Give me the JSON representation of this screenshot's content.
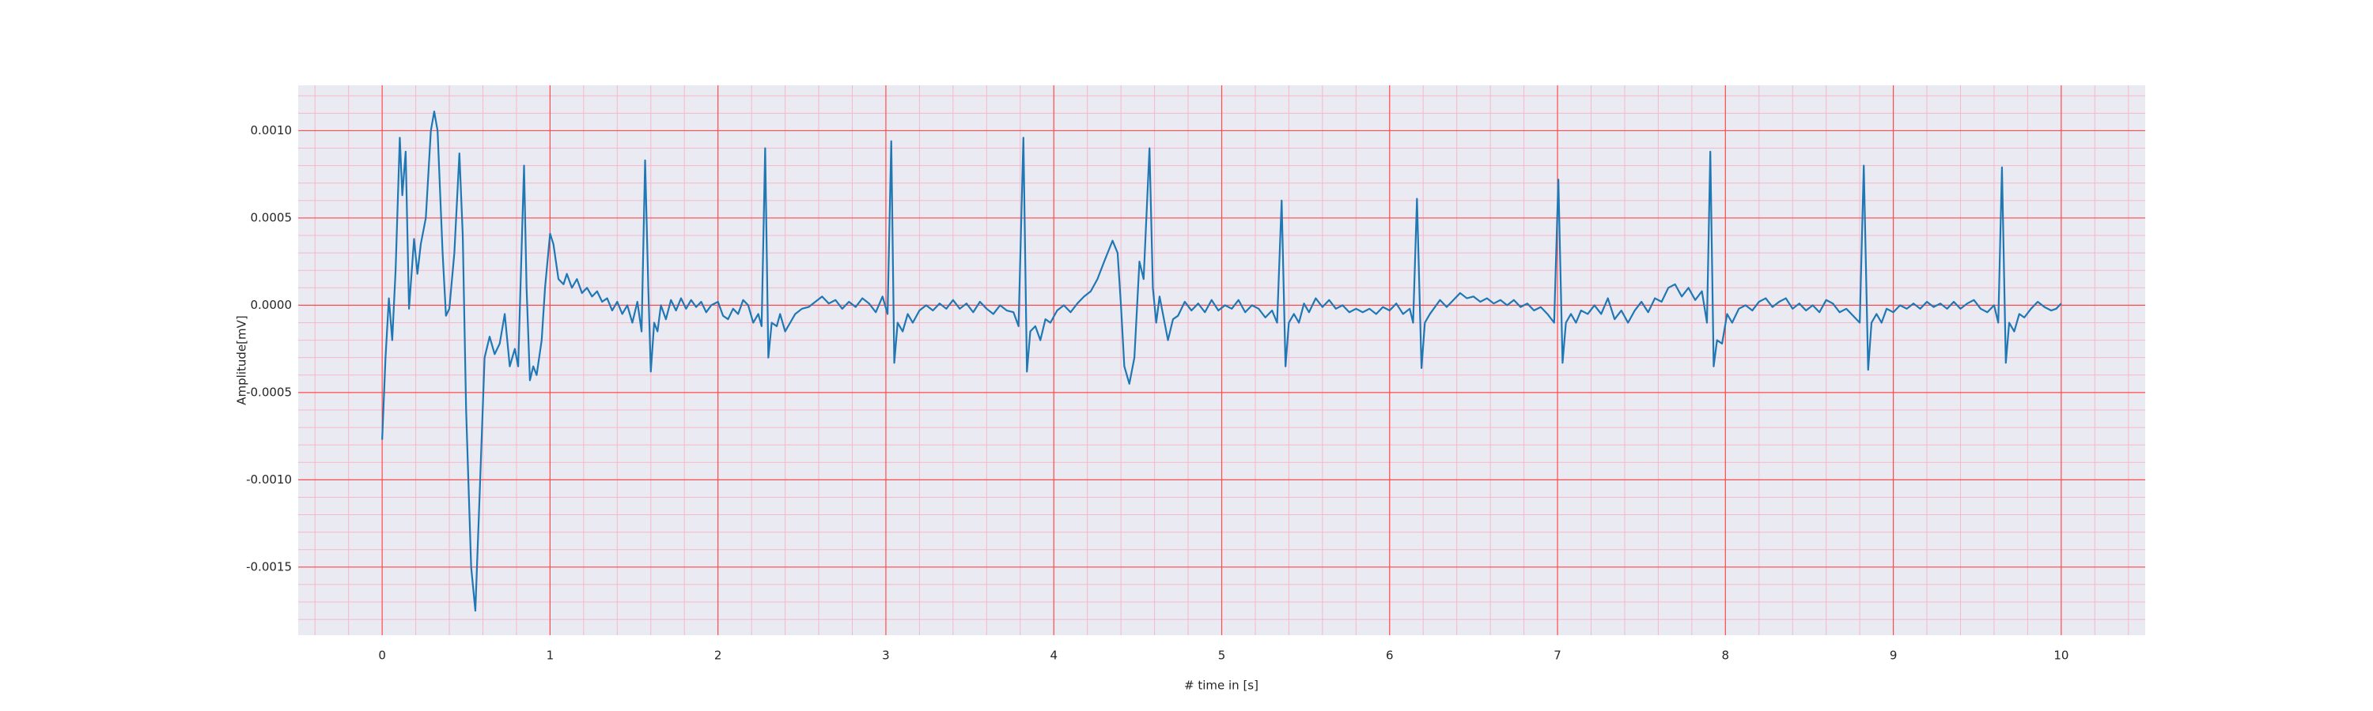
{
  "chart_data": {
    "type": "line",
    "xlabel": "# time in [s]",
    "ylabel": "Amplitude[mV]",
    "xlim": [
      -0.5,
      10.5
    ],
    "ylim": [
      -0.00189,
      0.00126
    ],
    "xticks": [
      0,
      1,
      2,
      3,
      4,
      5,
      6,
      7,
      8,
      9,
      10
    ],
    "yticks": [
      {
        "value": -0.0015,
        "label": "-0.0015"
      },
      {
        "value": -0.001,
        "label": "-0.0010"
      },
      {
        "value": -0.0005,
        "label": "-0.0005"
      },
      {
        "value": 0,
        "label": "0.0000"
      },
      {
        "value": 0.0005,
        "label": "0.0005"
      },
      {
        "value": 0.001,
        "label": "0.0010"
      }
    ],
    "grid": true,
    "grid_color": "#ff4d4d",
    "minor_grid_color": "#f5b8c8",
    "minor_xstep": 0.2,
    "minor_ystep": 0.0001,
    "background": "#eaeaf2",
    "series": [
      {
        "color": "#1f77b4",
        "x": [
          0,
          0.02,
          0.04,
          0.06,
          0.08,
          0.105,
          0.12,
          0.14,
          0.16,
          0.19,
          0.21,
          0.23,
          0.26,
          0.29,
          0.31,
          0.33,
          0.36,
          0.38,
          0.4,
          0.43,
          0.46,
          0.48,
          0.5,
          0.53,
          0.555,
          0.58,
          0.61,
          0.64,
          0.67,
          0.7,
          0.73,
          0.76,
          0.79,
          0.81,
          0.845,
          0.86,
          0.88,
          0.9,
          0.92,
          0.95,
          0.97,
          1.0,
          1.02,
          1.05,
          1.08,
          1.1,
          1.13,
          1.16,
          1.19,
          1.22,
          1.25,
          1.28,
          1.31,
          1.34,
          1.37,
          1.4,
          1.43,
          1.46,
          1.49,
          1.52,
          1.545,
          1.566,
          1.585,
          1.6,
          1.62,
          1.64,
          1.66,
          1.69,
          1.72,
          1.75,
          1.78,
          1.81,
          1.84,
          1.87,
          1.9,
          1.93,
          1.96,
          2.0,
          2.03,
          2.06,
          2.09,
          2.12,
          2.15,
          2.18,
          2.21,
          2.24,
          2.26,
          2.281,
          2.3,
          2.32,
          2.35,
          2.37,
          2.4,
          2.43,
          2.46,
          2.5,
          2.54,
          2.58,
          2.62,
          2.66,
          2.7,
          2.74,
          2.78,
          2.82,
          2.86,
          2.9,
          2.94,
          2.98,
          3.01,
          3.032,
          3.05,
          3.07,
          3.1,
          3.13,
          3.16,
          3.2,
          3.24,
          3.28,
          3.32,
          3.36,
          3.4,
          3.44,
          3.48,
          3.52,
          3.56,
          3.6,
          3.64,
          3.68,
          3.72,
          3.76,
          3.79,
          3.819,
          3.84,
          3.86,
          3.89,
          3.92,
          3.95,
          3.98,
          4.02,
          4.06,
          4.1,
          4.14,
          4.18,
          4.22,
          4.26,
          4.3,
          4.35,
          4.38,
          4.4,
          4.42,
          4.45,
          4.48,
          4.51,
          4.535,
          4.57,
          4.59,
          4.61,
          4.63,
          4.65,
          4.68,
          4.71,
          4.74,
          4.78,
          4.82,
          4.86,
          4.9,
          4.94,
          4.98,
          5.02,
          5.06,
          5.1,
          5.14,
          5.18,
          5.22,
          5.26,
          5.3,
          5.33,
          5.357,
          5.38,
          5.4,
          5.43,
          5.46,
          5.49,
          5.52,
          5.56,
          5.6,
          5.64,
          5.68,
          5.72,
          5.76,
          5.8,
          5.84,
          5.88,
          5.92,
          5.96,
          6.0,
          6.04,
          6.08,
          6.12,
          6.14,
          6.163,
          6.19,
          6.21,
          6.24,
          6.27,
          6.3,
          6.34,
          6.38,
          6.42,
          6.46,
          6.5,
          6.54,
          6.58,
          6.62,
          6.66,
          6.7,
          6.74,
          6.78,
          6.82,
          6.86,
          6.9,
          6.94,
          6.98,
          7.005,
          7.03,
          7.05,
          7.08,
          7.11,
          7.14,
          7.18,
          7.22,
          7.26,
          7.3,
          7.34,
          7.38,
          7.42,
          7.46,
          7.5,
          7.54,
          7.58,
          7.62,
          7.66,
          7.7,
          7.74,
          7.78,
          7.82,
          7.86,
          7.89,
          7.91,
          7.93,
          7.95,
          7.98,
          8.01,
          8.04,
          8.08,
          8.12,
          8.16,
          8.2,
          8.24,
          8.28,
          8.32,
          8.36,
          8.4,
          8.44,
          8.48,
          8.52,
          8.56,
          8.6,
          8.64,
          8.68,
          8.72,
          8.76,
          8.8,
          8.824,
          8.85,
          8.87,
          8.9,
          8.93,
          8.96,
          9.0,
          9.04,
          9.08,
          9.12,
          9.16,
          9.2,
          9.24,
          9.28,
          9.32,
          9.36,
          9.4,
          9.44,
          9.48,
          9.52,
          9.56,
          9.6,
          9.625,
          9.647,
          9.67,
          9.69,
          9.72,
          9.75,
          9.78,
          9.82,
          9.86,
          9.9,
          9.94,
          9.97,
          10.0
        ],
        "values": [
          -0.00077,
          -0.0003,
          4e-05,
          -0.0002,
          0.0002,
          0.00096,
          0.00063,
          0.00088,
          -2e-05,
          0.00038,
          0.00018,
          0.00035,
          0.0005,
          0.001,
          0.00111,
          0.001,
          0.0003,
          -6e-05,
          -2e-05,
          0.0003,
          0.00087,
          0.0004,
          -0.0006,
          -0.0015,
          -0.00175,
          -0.0011,
          -0.0003,
          -0.00018,
          -0.00028,
          -0.00022,
          -5e-05,
          -0.00035,
          -0.00025,
          -0.00035,
          0.0008,
          0.0001,
          -0.00043,
          -0.00035,
          -0.0004,
          -0.0002,
          0.0001,
          0.00041,
          0.00035,
          0.00015,
          0.00012,
          0.00018,
          0.0001,
          0.00015,
          7e-05,
          0.0001,
          5e-05,
          8e-05,
          2e-05,
          4e-05,
          -3e-05,
          2e-05,
          -5e-05,
          0,
          -0.0001,
          2e-05,
          -0.00015,
          0.00083,
          0.0001,
          -0.00038,
          -0.0001,
          -0.00015,
          0,
          -8e-05,
          3e-05,
          -3e-05,
          4e-05,
          -2e-05,
          3e-05,
          -1e-05,
          2e-05,
          -4e-05,
          0,
          2e-05,
          -6e-05,
          -8e-05,
          -2e-05,
          -5e-05,
          3e-05,
          0,
          -0.0001,
          -5e-05,
          -0.00012,
          0.0009,
          -0.0003,
          -0.0001,
          -0.00012,
          -5e-05,
          -0.00015,
          -0.0001,
          -5e-05,
          -2e-05,
          -1e-05,
          2e-05,
          5e-05,
          1e-05,
          3e-05,
          -2e-05,
          2e-05,
          -1e-05,
          4e-05,
          1e-05,
          -4e-05,
          5e-05,
          -5e-05,
          0.00094,
          -0.00033,
          -0.0001,
          -0.00015,
          -5e-05,
          -0.0001,
          -3e-05,
          0,
          -3e-05,
          1e-05,
          -2e-05,
          3e-05,
          -2e-05,
          1e-05,
          -4e-05,
          2e-05,
          -2e-05,
          -5e-05,
          0,
          -3e-05,
          -4e-05,
          -0.00012,
          0.00096,
          -0.00038,
          -0.00015,
          -0.00012,
          -0.0002,
          -8e-05,
          -0.0001,
          -3e-05,
          0,
          -4e-05,
          1e-05,
          5e-05,
          8e-05,
          0.00015,
          0.00025,
          0.00037,
          0.0003,
          0,
          -0.00035,
          -0.00045,
          -0.0003,
          0.00025,
          0.00015,
          0.0009,
          0.0001,
          -0.0001,
          5e-05,
          -5e-05,
          -0.0002,
          -8e-05,
          -6e-05,
          2e-05,
          -3e-05,
          1e-05,
          -4e-05,
          3e-05,
          -3e-05,
          0,
          -2e-05,
          3e-05,
          -4e-05,
          0,
          -2e-05,
          -7e-05,
          -3e-05,
          -0.0001,
          0.0006,
          -0.00035,
          -0.0001,
          -5e-05,
          -0.0001,
          1e-05,
          -4e-05,
          4e-05,
          -1e-05,
          3e-05,
          -2e-05,
          0,
          -4e-05,
          -2e-05,
          -4e-05,
          -2e-05,
          -5e-05,
          -1e-05,
          -3e-05,
          1e-05,
          -5e-05,
          -2e-05,
          -0.0001,
          0.00061,
          -0.00036,
          -0.0001,
          -5e-05,
          -1e-05,
          3e-05,
          -1e-05,
          3e-05,
          7e-05,
          4e-05,
          5e-05,
          2e-05,
          4e-05,
          1e-05,
          3e-05,
          0,
          3e-05,
          -1e-05,
          1e-05,
          -3e-05,
          -1e-05,
          -5e-05,
          -0.0001,
          0.00072,
          -0.00033,
          -0.0001,
          -5e-05,
          -0.0001,
          -3e-05,
          -5e-05,
          0,
          -5e-05,
          4e-05,
          -8e-05,
          -3e-05,
          -0.0001,
          -3e-05,
          2e-05,
          -4e-05,
          4e-05,
          2e-05,
          0.0001,
          0.00012,
          5e-05,
          0.0001,
          3e-05,
          8e-05,
          -0.0001,
          0.00088,
          -0.00035,
          -0.0002,
          -0.00022,
          -5e-05,
          -0.0001,
          -2e-05,
          0,
          -3e-05,
          2e-05,
          4e-05,
          -1e-05,
          2e-05,
          4e-05,
          -2e-05,
          1e-05,
          -3e-05,
          0,
          -4e-05,
          3e-05,
          1e-05,
          -4e-05,
          -2e-05,
          -6e-05,
          -0.0001,
          0.0008,
          -0.00037,
          -0.0001,
          -5e-05,
          -0.0001,
          -2e-05,
          -4e-05,
          0,
          -2e-05,
          1e-05,
          -2e-05,
          2e-05,
          -1e-05,
          1e-05,
          -2e-05,
          2e-05,
          -2e-05,
          1e-05,
          3e-05,
          -2e-05,
          -4e-05,
          0,
          -0.0001,
          0.00079,
          -0.00033,
          -0.0001,
          -0.00015,
          -5e-05,
          -7e-05,
          -2e-05,
          2e-05,
          -1e-05,
          -3e-05,
          -2e-05,
          1e-05
        ]
      }
    ]
  }
}
